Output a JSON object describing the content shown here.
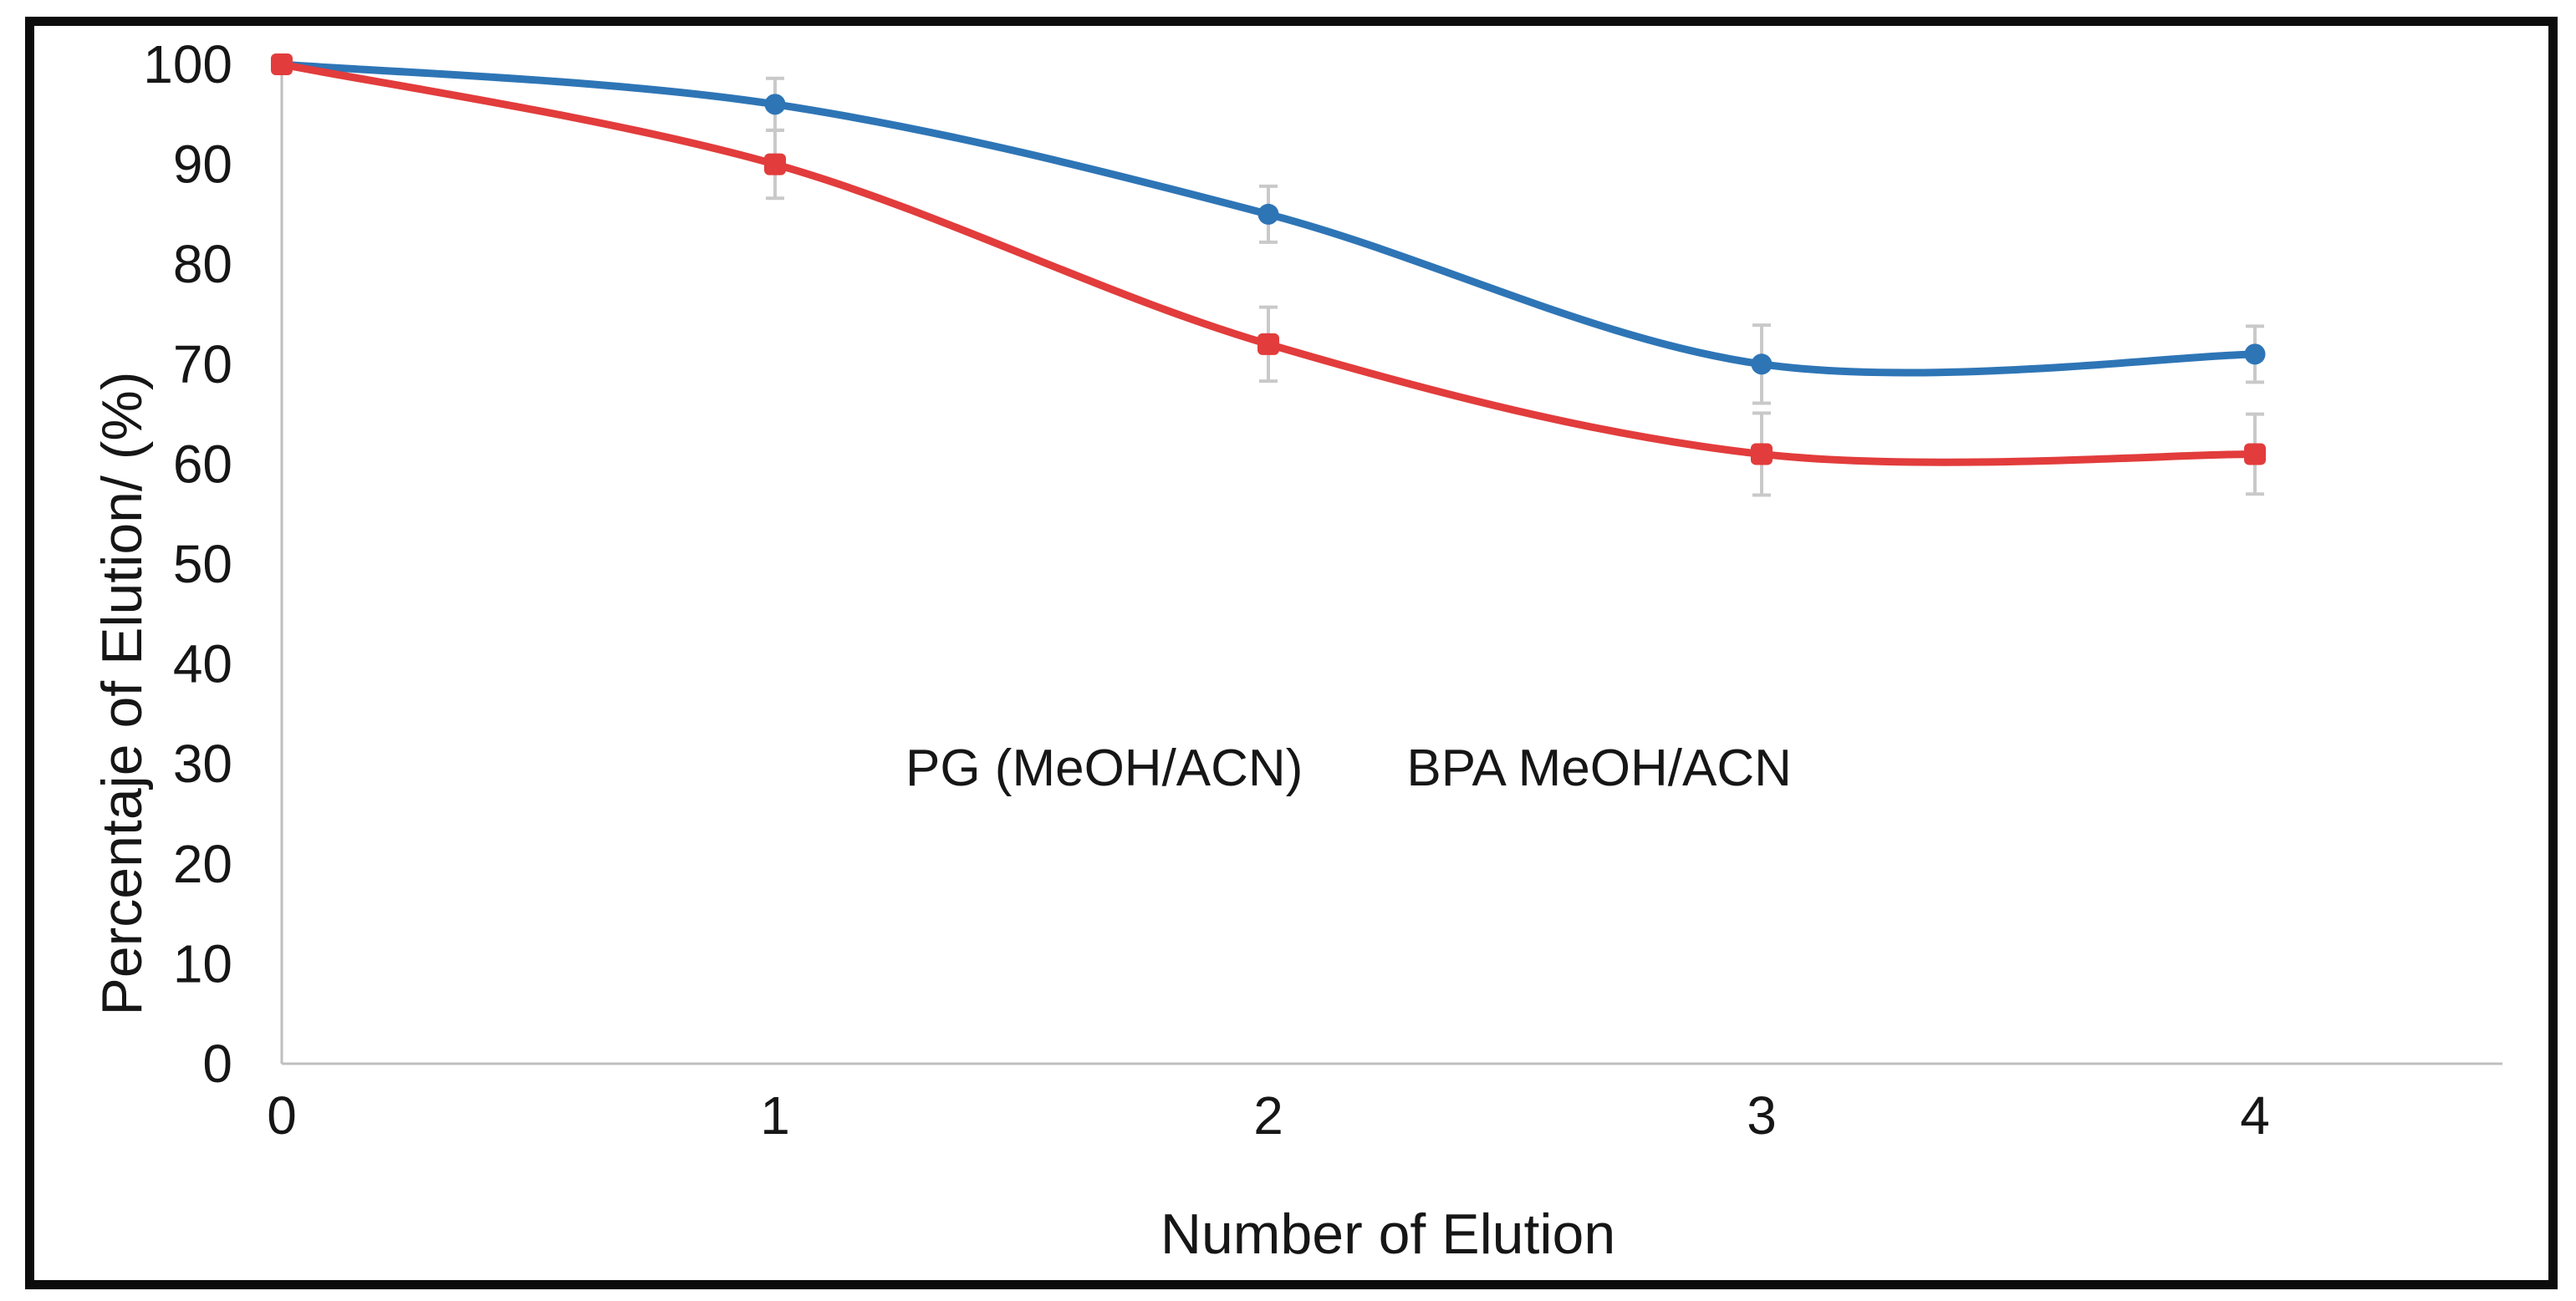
{
  "figure": {
    "background": "#ffffff",
    "frame_color": "#0c0c0c",
    "axis_color": "#bfbfbf",
    "error_bar_color": "#c9c9c9",
    "text_color": "#161616"
  },
  "chart_data": {
    "type": "line",
    "x": [
      0,
      1,
      2,
      3,
      4
    ],
    "xticks": [
      "0",
      "1",
      "2",
      "3",
      "4"
    ],
    "yticks": [
      0,
      10,
      20,
      30,
      40,
      50,
      60,
      70,
      80,
      90,
      100
    ],
    "ylim": [
      0,
      100
    ],
    "xlabel": "Number of Elution",
    "ylabel": "Percentaje of Elution/ (%)",
    "grid": false,
    "legend_position": "inside-center",
    "series": [
      {
        "name": "PG (MeOH/ACN)",
        "marker": "circle",
        "color": "#2E75B6",
        "values": [
          100,
          96,
          85,
          70,
          71
        ],
        "error": [
          0,
          2.6,
          2.8,
          3.9,
          2.8
        ]
      },
      {
        "name": "BPA MeOH/ACN",
        "marker": "square",
        "color": "#E23C3C",
        "values": [
          100,
          90,
          72,
          61,
          61
        ],
        "error": [
          0,
          3.4,
          3.7,
          4.1,
          4.0
        ]
      }
    ]
  }
}
